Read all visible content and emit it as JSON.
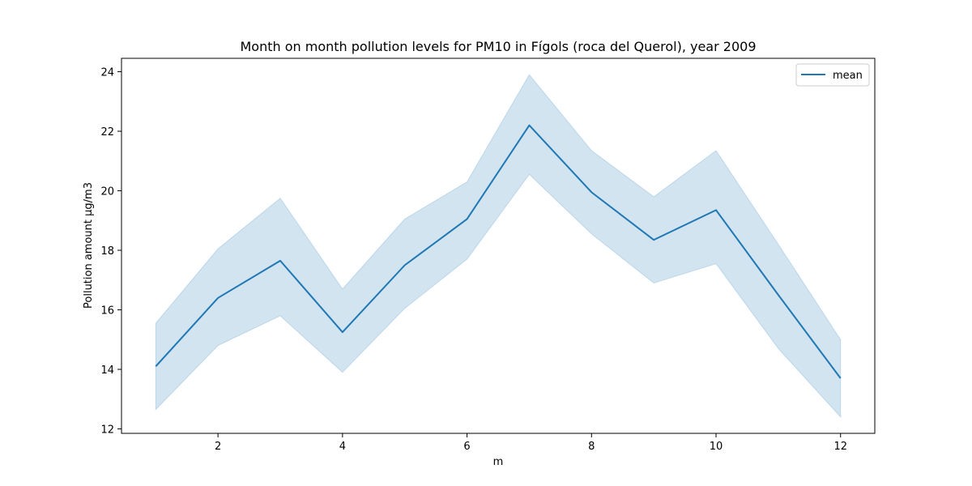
{
  "chart_data": {
    "type": "line",
    "title": "Month on month pollution levels for PM10 in Fígols (roca del Querol), year 2009",
    "xlabel": "m",
    "ylabel": "Pollution amount µg/m3",
    "x": [
      1,
      2,
      3,
      4,
      5,
      6,
      7,
      8,
      9,
      10,
      11,
      12
    ],
    "series": [
      {
        "name": "mean",
        "values": [
          14.1,
          16.4,
          17.65,
          15.25,
          17.5,
          19.05,
          22.2,
          19.95,
          18.35,
          19.35,
          16.5,
          13.7
        ],
        "band_upper": [
          15.55,
          18.05,
          19.75,
          16.7,
          19.05,
          20.3,
          23.9,
          21.35,
          19.8,
          21.35,
          18.2,
          15.0
        ],
        "band_lower": [
          12.65,
          14.8,
          15.8,
          13.9,
          16.05,
          17.7,
          20.55,
          18.55,
          16.9,
          17.55,
          14.7,
          12.4
        ]
      }
    ],
    "xlim": [
      0.45,
      12.55
    ],
    "ylim": [
      11.85,
      24.45
    ],
    "xticks": [
      2,
      4,
      6,
      8,
      10,
      12
    ],
    "yticks": [
      12,
      14,
      16,
      18,
      20,
      22,
      24
    ],
    "grid": false,
    "legend_position": "top-right",
    "colors": {
      "line": "#1f77b4",
      "band": "#1f77b4"
    }
  }
}
